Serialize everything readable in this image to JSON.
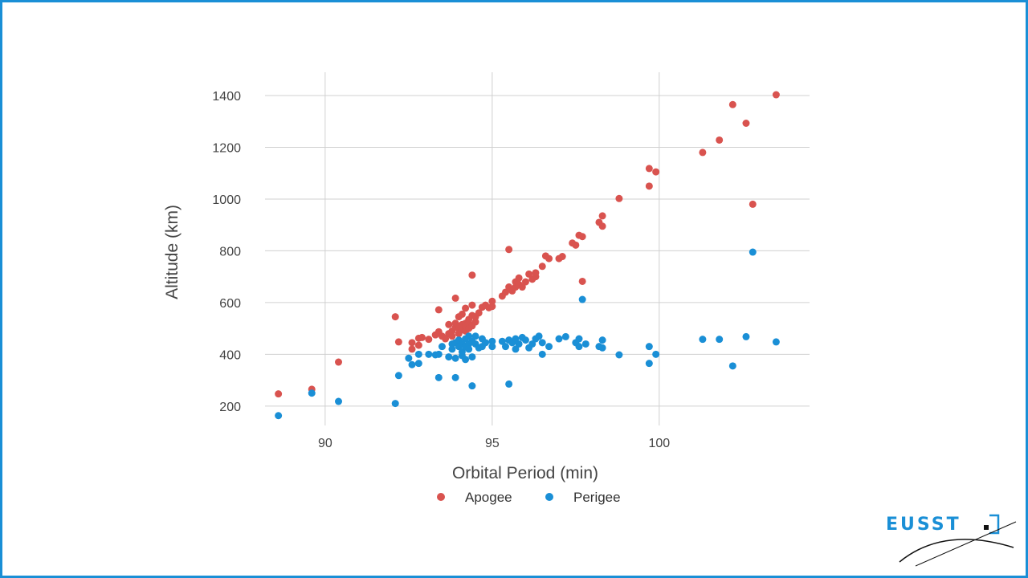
{
  "colors": {
    "frame": "#1a8fd6",
    "apogee": "#d9534f",
    "perigee": "#1a8fd6",
    "grid": "#d0d0d0"
  },
  "logo": {
    "text": "EUSST"
  },
  "chart_data": {
    "type": "scatter",
    "xlabel": "Orbital Period (min)",
    "ylabel": "Altitude (km)",
    "xlim": [
      88.2,
      104.5
    ],
    "ylim": [
      125,
      1490
    ],
    "xticks": [
      90,
      95,
      100
    ],
    "yticks": [
      200,
      400,
      600,
      800,
      1000,
      1200,
      1400
    ],
    "grid": true,
    "legend": "bottom-center",
    "series": [
      {
        "name": "Apogee",
        "points": [
          [
            88.6,
            247
          ],
          [
            89.6,
            265
          ],
          [
            90.4,
            370
          ],
          [
            92.1,
            545
          ],
          [
            92.2,
            448
          ],
          [
            92.6,
            420
          ],
          [
            92.6,
            445
          ],
          [
            92.8,
            435
          ],
          [
            92.8,
            462
          ],
          [
            92.9,
            465
          ],
          [
            93.1,
            458
          ],
          [
            93.3,
            475
          ],
          [
            93.4,
            487
          ],
          [
            93.5,
            470
          ],
          [
            93.4,
            572
          ],
          [
            93.6,
            460
          ],
          [
            93.7,
            480
          ],
          [
            93.7,
            515
          ],
          [
            93.8,
            490
          ],
          [
            93.8,
            470
          ],
          [
            93.9,
            505
          ],
          [
            93.9,
            520
          ],
          [
            93.9,
            617
          ],
          [
            94.0,
            500
          ],
          [
            94.0,
            480
          ],
          [
            94.0,
            545
          ],
          [
            94.1,
            495
          ],
          [
            94.1,
            515
          ],
          [
            94.1,
            555
          ],
          [
            94.2,
            520
          ],
          [
            94.2,
            490
          ],
          [
            94.2,
            510
          ],
          [
            94.2,
            578
          ],
          [
            94.3,
            500
          ],
          [
            94.3,
            520
          ],
          [
            94.3,
            535
          ],
          [
            94.4,
            510
          ],
          [
            94.4,
            550
          ],
          [
            94.4,
            590
          ],
          [
            94.4,
            706
          ],
          [
            94.5,
            545
          ],
          [
            94.5,
            525
          ],
          [
            94.6,
            560
          ],
          [
            94.7,
            582
          ],
          [
            94.8,
            590
          ],
          [
            94.9,
            580
          ],
          [
            95.0,
            605
          ],
          [
            95.0,
            585
          ],
          [
            95.3,
            625
          ],
          [
            95.4,
            640
          ],
          [
            95.5,
            660
          ],
          [
            95.5,
            805
          ],
          [
            95.6,
            645
          ],
          [
            95.7,
            660
          ],
          [
            95.7,
            680
          ],
          [
            95.8,
            670
          ],
          [
            95.8,
            695
          ],
          [
            95.9,
            660
          ],
          [
            96.0,
            680
          ],
          [
            96.1,
            710
          ],
          [
            96.2,
            690
          ],
          [
            96.3,
            700
          ],
          [
            96.3,
            715
          ],
          [
            96.5,
            740
          ],
          [
            96.6,
            780
          ],
          [
            96.7,
            770
          ],
          [
            97.0,
            770
          ],
          [
            97.1,
            778
          ],
          [
            97.4,
            830
          ],
          [
            97.5,
            822
          ],
          [
            97.6,
            860
          ],
          [
            97.7,
            855
          ],
          [
            97.7,
            682
          ],
          [
            98.2,
            910
          ],
          [
            98.3,
            895
          ],
          [
            98.3,
            935
          ],
          [
            98.8,
            1002
          ],
          [
            99.7,
            1118
          ],
          [
            99.7,
            1050
          ],
          [
            99.9,
            1105
          ],
          [
            101.3,
            1180
          ],
          [
            101.8,
            1228
          ],
          [
            102.2,
            1365
          ],
          [
            102.6,
            1293
          ],
          [
            102.8,
            980
          ],
          [
            103.5,
            1403
          ]
        ]
      },
      {
        "name": "Perigee",
        "points": [
          [
            88.6,
            163
          ],
          [
            89.6,
            250
          ],
          [
            90.4,
            218
          ],
          [
            92.1,
            210
          ],
          [
            92.2,
            318
          ],
          [
            92.5,
            385
          ],
          [
            92.6,
            360
          ],
          [
            92.8,
            365
          ],
          [
            92.8,
            400
          ],
          [
            93.1,
            400
          ],
          [
            93.3,
            398
          ],
          [
            93.4,
            400
          ],
          [
            93.4,
            310
          ],
          [
            93.5,
            430
          ],
          [
            93.7,
            390
          ],
          [
            93.8,
            440
          ],
          [
            93.8,
            420
          ],
          [
            93.9,
            310
          ],
          [
            93.9,
            445
          ],
          [
            93.9,
            385
          ],
          [
            94.0,
            430
          ],
          [
            94.0,
            455
          ],
          [
            94.1,
            440
          ],
          [
            94.1,
            410
          ],
          [
            94.1,
            395
          ],
          [
            94.2,
            460
          ],
          [
            94.2,
            430
          ],
          [
            94.2,
            380
          ],
          [
            94.3,
            440
          ],
          [
            94.3,
            470
          ],
          [
            94.3,
            420
          ],
          [
            94.4,
            450
          ],
          [
            94.4,
            390
          ],
          [
            94.4,
            278
          ],
          [
            94.5,
            470
          ],
          [
            94.5,
            440
          ],
          [
            94.6,
            425
          ],
          [
            94.7,
            460
          ],
          [
            94.7,
            430
          ],
          [
            94.8,
            445
          ],
          [
            95.0,
            450
          ],
          [
            95.0,
            430
          ],
          [
            95.3,
            450
          ],
          [
            95.4,
            430
          ],
          [
            95.5,
            455
          ],
          [
            95.5,
            285
          ],
          [
            95.6,
            445
          ],
          [
            95.7,
            420
          ],
          [
            95.7,
            460
          ],
          [
            95.8,
            440
          ],
          [
            95.9,
            465
          ],
          [
            96.0,
            455
          ],
          [
            96.1,
            425
          ],
          [
            96.2,
            440
          ],
          [
            96.3,
            460
          ],
          [
            96.4,
            470
          ],
          [
            96.5,
            445
          ],
          [
            96.5,
            400
          ],
          [
            96.7,
            430
          ],
          [
            97.0,
            460
          ],
          [
            97.2,
            468
          ],
          [
            97.5,
            445
          ],
          [
            97.6,
            460
          ],
          [
            97.6,
            430
          ],
          [
            97.7,
            612
          ],
          [
            97.8,
            440
          ],
          [
            98.2,
            430
          ],
          [
            98.3,
            455
          ],
          [
            98.3,
            425
          ],
          [
            98.8,
            398
          ],
          [
            99.7,
            430
          ],
          [
            99.7,
            365
          ],
          [
            99.9,
            400
          ],
          [
            101.3,
            458
          ],
          [
            101.8,
            458
          ],
          [
            102.2,
            355
          ],
          [
            102.6,
            468
          ],
          [
            102.8,
            795
          ],
          [
            103.5,
            448
          ]
        ]
      }
    ]
  }
}
